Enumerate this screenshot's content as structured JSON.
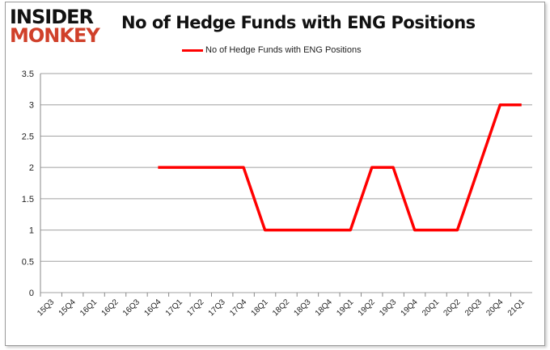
{
  "logo": {
    "line1": "INSIDER",
    "line2": "MONKEY"
  },
  "chart_data": {
    "type": "line",
    "title": "No of Hedge Funds with ENG Positions",
    "xlabel": "",
    "ylabel": "",
    "categories": [
      "15Q3",
      "15Q4",
      "16Q1",
      "16Q2",
      "16Q3",
      "16Q4",
      "17Q1",
      "17Q2",
      "17Q3",
      "17Q4",
      "18Q1",
      "18Q2",
      "18Q3",
      "18Q4",
      "19Q1",
      "19Q2",
      "19Q3",
      "19Q4",
      "20Q1",
      "20Q2",
      "20Q3",
      "20Q4",
      "21Q1"
    ],
    "series": [
      {
        "name": "No of Hedge Funds with ENG Positions",
        "color": "#ff0000",
        "values": [
          null,
          null,
          null,
          null,
          null,
          2,
          2,
          2,
          2,
          2,
          1,
          1,
          1,
          1,
          1,
          2,
          2,
          1,
          1,
          1,
          2,
          3,
          3
        ]
      }
    ],
    "ylim": [
      0,
      3.5
    ],
    "yticks": [
      "0",
      "0.5",
      "1",
      "1.5",
      "2",
      "2.5",
      "3",
      "3.5"
    ],
    "grid": true,
    "legend": "top-center"
  }
}
